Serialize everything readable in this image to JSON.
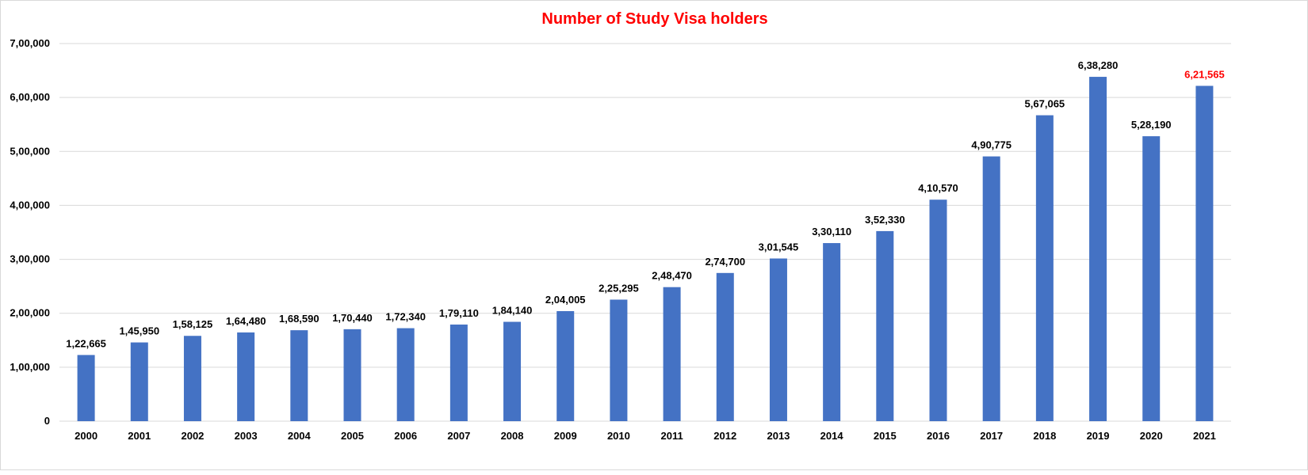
{
  "chart_data": {
    "type": "bar",
    "title": "Number of Study Visa holders",
    "xlabel": "",
    "ylabel": "",
    "categories": [
      "2000",
      "2001",
      "2002",
      "2003",
      "2004",
      "2005",
      "2006",
      "2007",
      "2008",
      "2009",
      "2010",
      "2011",
      "2012",
      "2013",
      "2014",
      "2015",
      "2016",
      "2017",
      "2018",
      "2019",
      "2020",
      "2021"
    ],
    "values": [
      122665,
      145950,
      158125,
      164480,
      168590,
      170440,
      172340,
      179110,
      184140,
      204005,
      225295,
      248470,
      274700,
      301545,
      330110,
      352330,
      410570,
      490775,
      567065,
      638280,
      528190,
      621565
    ],
    "data_labels": [
      "1,22,665",
      "1,45,950",
      "1,58,125",
      "1,64,480",
      "1,68,590",
      "1,70,440",
      "1,72,340",
      "1,79,110",
      "1,84,140",
      "2,04,005",
      "2,25,295",
      "2,48,470",
      "2,74,700",
      "3,01,545",
      "3,30,110",
      "3,52,330",
      "4,10,570",
      "4,90,775",
      "5,67,065",
      "6,38,280",
      "5,28,190",
      "6,21,565"
    ],
    "highlighted_labels": [
      "6,21,565"
    ],
    "ylim": [
      0,
      700000
    ],
    "yticks": [
      0,
      100000,
      200000,
      300000,
      400000,
      500000,
      600000,
      700000
    ],
    "ytick_labels": [
      "0",
      "1,00,000",
      "2,00,000",
      "3,00,000",
      "4,00,000",
      "5,00,000",
      "6,00,000",
      "7,00,000"
    ],
    "grid": true,
    "legend": "none",
    "colors": {
      "bar": "#4472C4",
      "title": "#FF0000",
      "label": "#000000",
      "highlight_label": "#FF0000",
      "grid": "#D9D9D9"
    }
  }
}
